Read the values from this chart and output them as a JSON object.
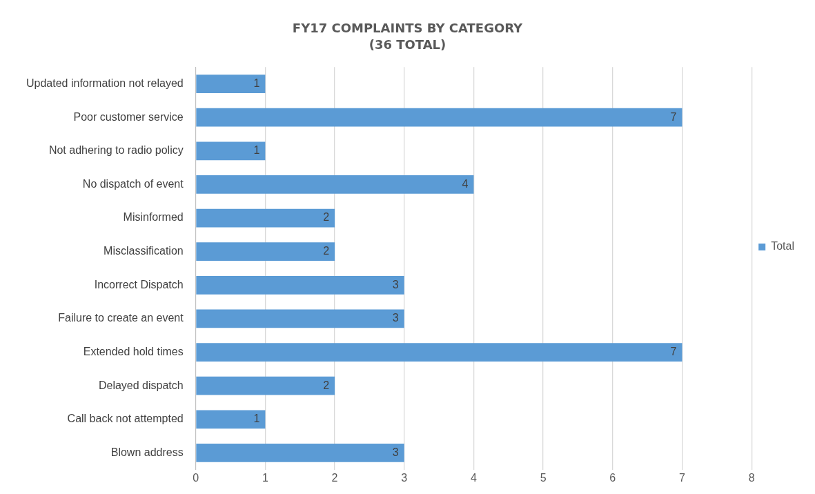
{
  "chart_data": {
    "type": "bar",
    "orientation": "horizontal",
    "title": "FY17 COMPLAINTS BY CATEGORY",
    "subtitle": "(36 TOTAL)",
    "categories": [
      "Updated information not relayed",
      "Poor customer service",
      "Not adhering to radio policy",
      "No dispatch of event",
      "Misinformed",
      "Misclassification",
      "Incorrect Dispatch",
      "Failure to create an event",
      "Extended hold times",
      "Delayed dispatch",
      "Call back not attempted",
      "Blown address"
    ],
    "series": [
      {
        "name": "Total",
        "color": "#5b9bd5",
        "values": [
          1,
          7,
          1,
          4,
          2,
          2,
          3,
          3,
          7,
          2,
          1,
          3
        ]
      }
    ],
    "xlim": [
      0,
      8
    ],
    "xticks": [
      0,
      1,
      2,
      3,
      4,
      5,
      6,
      7,
      8
    ],
    "grid": "x",
    "legend": "right",
    "data_labels": true
  }
}
